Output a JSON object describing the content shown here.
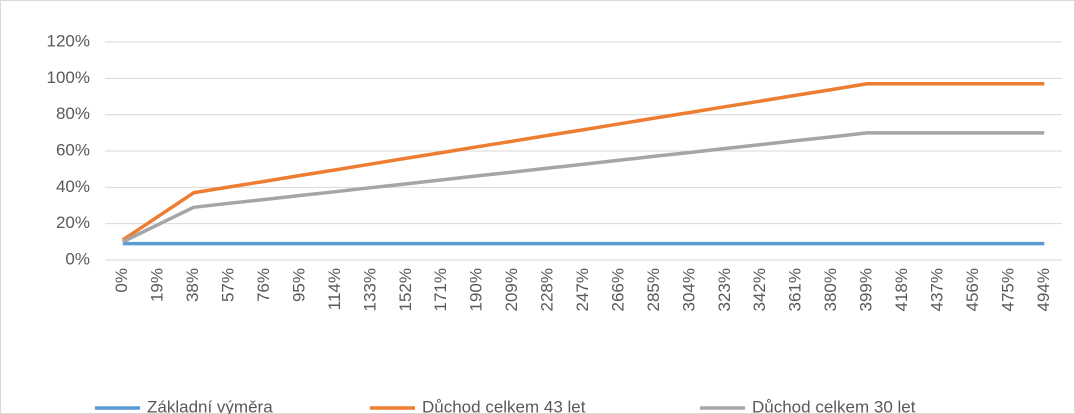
{
  "chart_data": {
    "type": "line",
    "categories": [
      "0%",
      "19%",
      "38%",
      "57%",
      "76%",
      "95%",
      "114%",
      "133%",
      "152%",
      "171%",
      "190%",
      "209%",
      "228%",
      "247%",
      "266%",
      "285%",
      "304%",
      "323%",
      "342%",
      "361%",
      "380%",
      "399%",
      "418%",
      "437%",
      "456%",
      "475%",
      "494%"
    ],
    "series": [
      {
        "name": "Základní výměra",
        "color": "#5b9bd5",
        "values": [
          9,
          9,
          9,
          9,
          9,
          9,
          9,
          9,
          9,
          9,
          9,
          9,
          9,
          9,
          9,
          9,
          9,
          9,
          9,
          9,
          9,
          9,
          9,
          9,
          9,
          9,
          9
        ]
      },
      {
        "name": "Důchod celkem 43 let",
        "color": "#ed7d31",
        "values": [
          11,
          24,
          37,
          40.2,
          43.3,
          46.5,
          49.6,
          52.8,
          56,
          59.1,
          62.3,
          65.4,
          68.6,
          71.7,
          74.9,
          78.1,
          81.2,
          84.4,
          87.5,
          90.7,
          93.8,
          97,
          97,
          97,
          97,
          97,
          97
        ]
      },
      {
        "name": "Důchod celkem 30 let",
        "color": "#a5a5a5",
        "values": [
          10,
          19.5,
          29,
          31.2,
          33.3,
          35.5,
          37.6,
          39.8,
          41.9,
          44.1,
          46.3,
          48.4,
          50.6,
          52.7,
          54.9,
          57.1,
          59.2,
          61.4,
          63.5,
          65.7,
          67.8,
          70,
          70,
          70,
          70,
          70,
          70
        ]
      }
    ],
    "ylim": [
      0,
      120
    ],
    "yticks": [
      {
        "value": 0,
        "label": "0%"
      },
      {
        "value": 20,
        "label": "20%"
      },
      {
        "value": 40,
        "label": "40%"
      },
      {
        "value": 60,
        "label": "60%"
      },
      {
        "value": 80,
        "label": "80%"
      },
      {
        "value": 100,
        "label": "100%"
      },
      {
        "value": 120,
        "label": "120%"
      }
    ],
    "grid": true,
    "legend": "bottom"
  }
}
